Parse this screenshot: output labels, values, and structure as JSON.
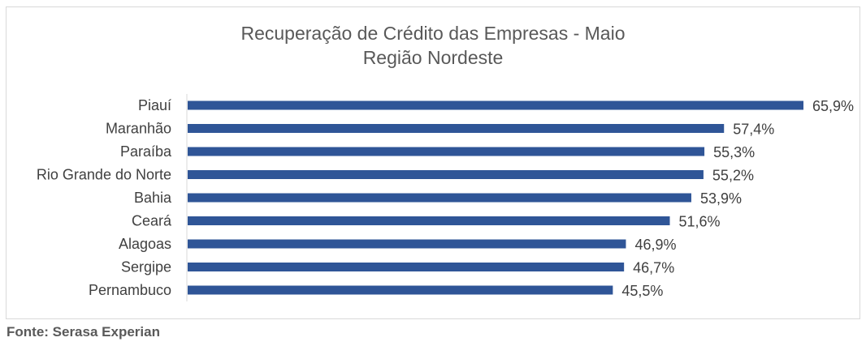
{
  "colors": {
    "bar": "#2f5597",
    "axis_line": "#d9d9d9",
    "text": "#404040",
    "title": "#595959"
  },
  "chart_data": {
    "type": "bar",
    "orientation": "horizontal",
    "title": "Recuperação de Crédito das Empresas - Maio",
    "subtitle": "Região Nordeste",
    "categories": [
      "Piauí",
      "Maranhão",
      "Paraíba",
      "Rio Grande do Norte",
      "Bahia",
      "Ceará",
      "Alagoas",
      "Sergipe",
      "Pernambuco"
    ],
    "values": [
      65.9,
      57.4,
      55.3,
      55.2,
      53.9,
      51.6,
      46.9,
      46.7,
      45.5
    ],
    "value_labels": [
      "65,9%",
      "57,4%",
      "55,3%",
      "55,2%",
      "53,9%",
      "51,6%",
      "46,9%",
      "46,7%",
      "45,5%"
    ],
    "unit": "%",
    "xlim": [
      0,
      65.9
    ],
    "grid": false,
    "legend": "none"
  },
  "footer": {
    "source": "Fonte: Serasa Experian"
  }
}
